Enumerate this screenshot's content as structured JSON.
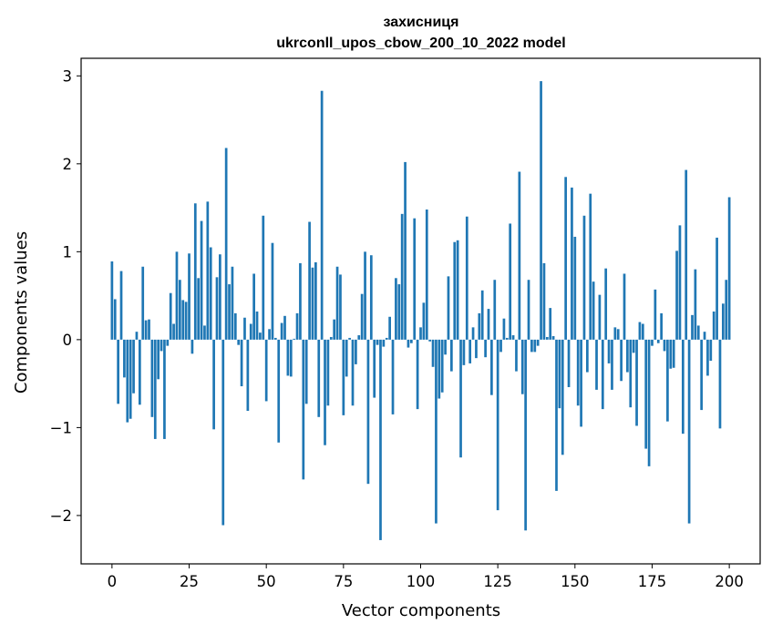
{
  "chart_data": {
    "type": "bar",
    "title": "захисниця",
    "subtitle": "ukrconll_upos_cbow_200_10_2022 model",
    "xlabel": "Vector components",
    "ylabel": "Components values",
    "x_ticks": [
      0,
      25,
      50,
      75,
      100,
      125,
      150,
      175,
      200
    ],
    "x_tick_labels": [
      "0",
      "25",
      "50",
      "75",
      "100",
      "125",
      "150",
      "175",
      "200"
    ],
    "y_ticks": [
      -2,
      -1,
      0,
      1,
      2,
      3
    ],
    "y_tick_labels": [
      "−2",
      "−1",
      "0",
      "1",
      "2",
      "3"
    ],
    "xlim": [
      -10,
      210
    ],
    "ylim": [
      -2.55,
      3.2
    ],
    "bar_color": "#1f77b4",
    "grid": false,
    "values": [
      0.89,
      0.46,
      -0.73,
      0.78,
      -0.43,
      -0.94,
      -0.9,
      -0.61,
      0.09,
      -0.74,
      0.83,
      0.22,
      0.23,
      -0.88,
      -1.13,
      -0.45,
      -0.13,
      -1.13,
      -0.07,
      0.53,
      0.18,
      1.0,
      0.68,
      0.45,
      0.43,
      0.98,
      -0.16,
      1.55,
      0.7,
      1.35,
      0.16,
      1.57,
      1.05,
      -1.02,
      0.71,
      0.97,
      -2.11,
      2.18,
      0.63,
      0.83,
      0.3,
      -0.06,
      -0.53,
      0.25,
      -0.81,
      0.18,
      0.75,
      0.32,
      0.08,
      1.41,
      -0.7,
      0.12,
      1.1,
      0.02,
      -1.17,
      0.19,
      0.27,
      -0.41,
      -0.42,
      0.01,
      0.3,
      0.87,
      -1.59,
      -0.73,
      1.34,
      0.82,
      0.88,
      -0.88,
      2.83,
      -1.2,
      -0.75,
      0.03,
      0.23,
      0.83,
      0.74,
      -0.86,
      -0.42,
      0.02,
      -0.75,
      -0.28,
      0.05,
      0.52,
      1.0,
      -1.64,
      0.96,
      -0.66,
      -0.06,
      -2.28,
      -0.08,
      0.02,
      0.26,
      -0.85,
      0.7,
      0.63,
      1.43,
      2.02,
      -0.09,
      -0.04,
      1.38,
      -0.79,
      0.14,
      0.42,
      1.48,
      -0.02,
      -0.31,
      -2.09,
      -0.67,
      -0.6,
      -0.17,
      0.72,
      -0.36,
      1.11,
      1.13,
      -1.34,
      -0.29,
      1.4,
      -0.27,
      0.14,
      -0.21,
      0.3,
      0.56,
      -0.2,
      0.35,
      -0.63,
      0.68,
      -1.94,
      -0.14,
      0.24,
      0.02,
      1.32,
      0.05,
      -0.36,
      1.91,
      -0.62,
      -2.17,
      0.68,
      -0.14,
      -0.14,
      -0.07,
      2.94,
      0.87,
      0.03,
      0.36,
      0.04,
      -1.72,
      -0.78,
      -1.31,
      1.85,
      -0.54,
      1.73,
      1.17,
      -0.75,
      -0.99,
      1.41,
      -0.37,
      1.66,
      0.66,
      -0.57,
      0.51,
      -0.79,
      0.81,
      -0.27,
      -0.57,
      0.14,
      0.12,
      -0.47,
      0.75,
      -0.37,
      -0.77,
      -0.15,
      -0.98,
      0.2,
      0.18,
      -1.24,
      -1.44,
      -0.07,
      0.57,
      -0.04,
      0.3,
      -0.13,
      -0.93,
      -0.33,
      -0.32,
      1.01,
      1.3,
      -1.07,
      1.93,
      -2.09,
      0.28,
      0.8,
      0.16,
      -0.8,
      0.09,
      -0.41,
      -0.24,
      0.32,
      1.16,
      -1.01,
      0.41,
      0.68,
      1.62
    ]
  }
}
